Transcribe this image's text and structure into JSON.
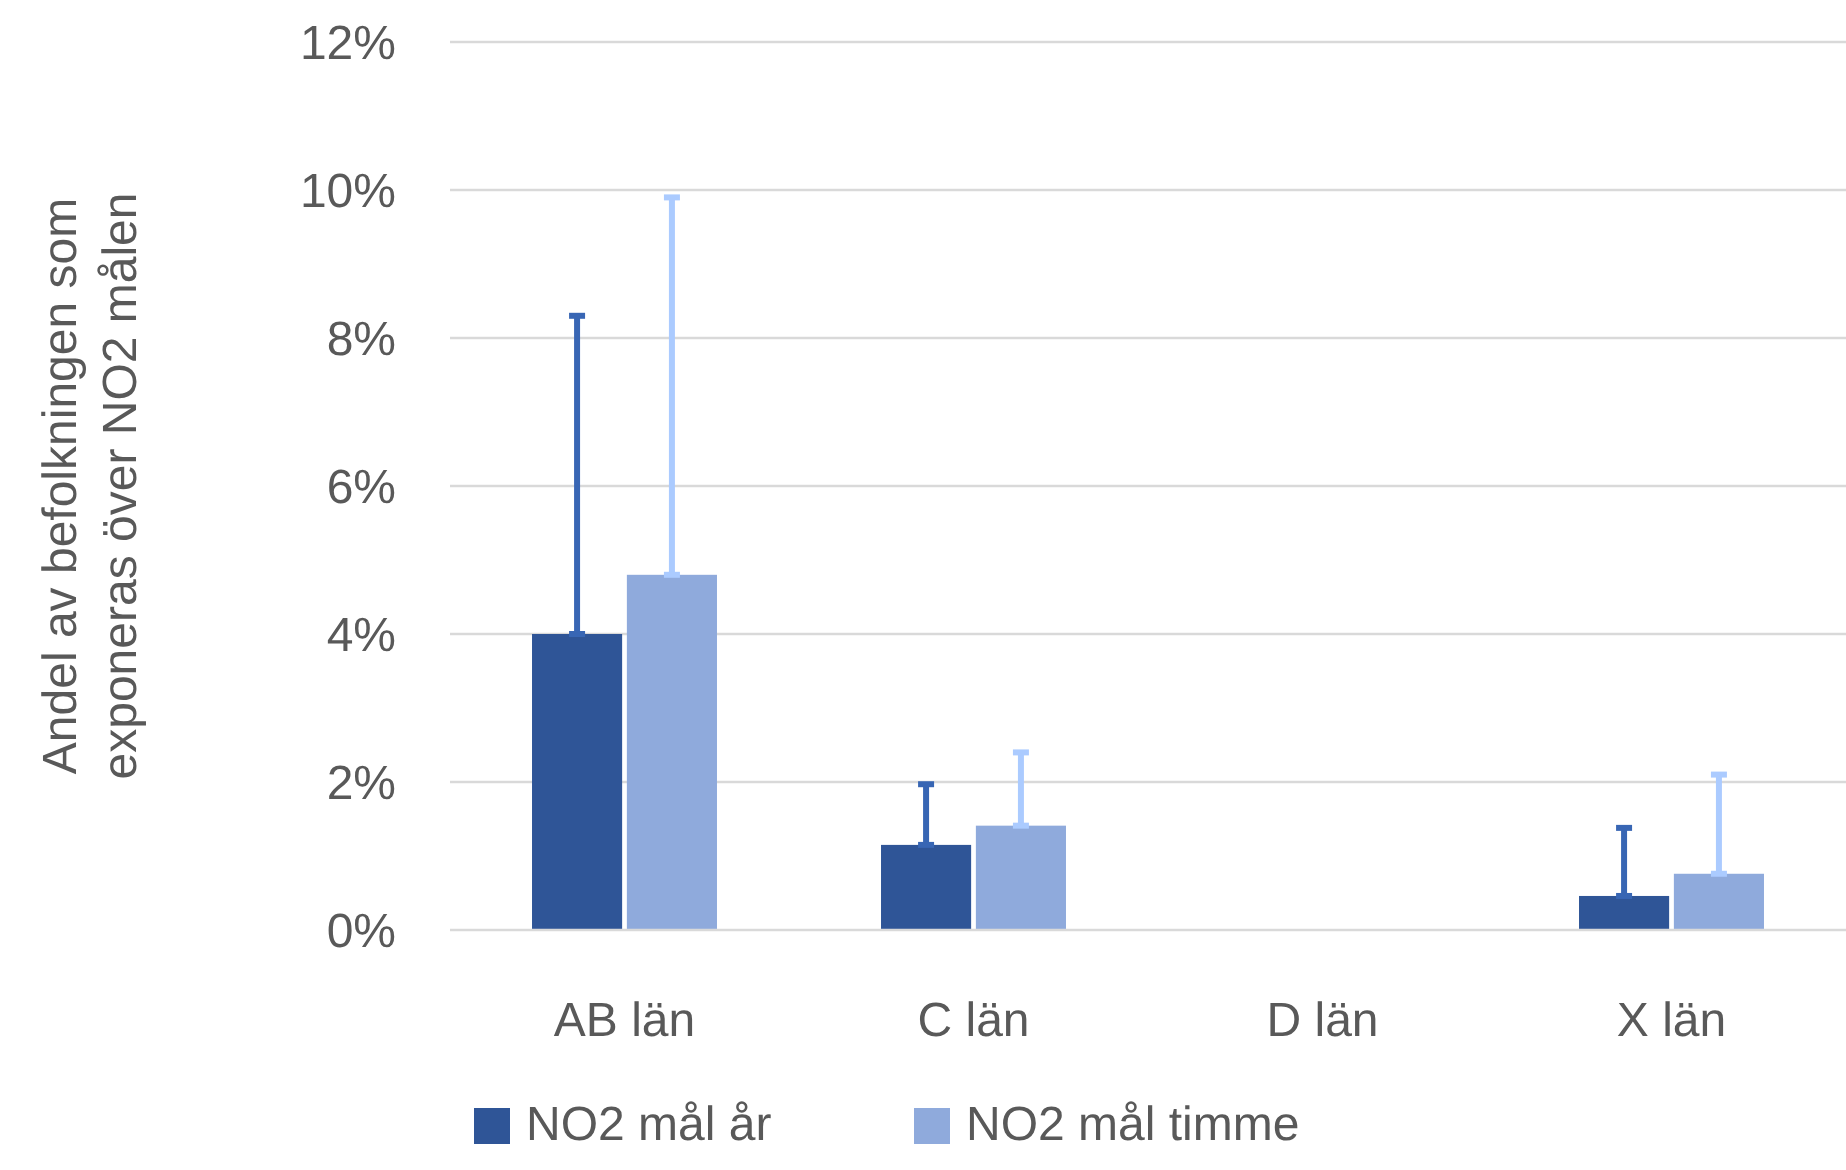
{
  "chart_data": {
    "type": "bar",
    "ylabel": "Andel av befolkningen som\nexponeras över NO2 målen",
    "categories": [
      "AB län",
      "C län",
      "D län",
      "X län"
    ],
    "series": [
      {
        "name": "NO2 mål år",
        "color": "#2f5597",
        "values": [
          4.0,
          1.15,
          0,
          0.46
        ],
        "errors": [
          [
            4.0,
            8.3
          ],
          [
            1.15,
            1.97
          ],
          null,
          [
            0.46,
            1.38
          ]
        ]
      },
      {
        "name": "NO2 mål timme",
        "color": "#8faadc",
        "values": [
          4.8,
          1.41,
          0,
          0.76
        ],
        "errors": [
          [
            4.8,
            9.9
          ],
          [
            1.41,
            2.4
          ],
          null,
          [
            0.76,
            2.1
          ]
        ]
      }
    ],
    "ylim": [
      0,
      12
    ],
    "yticks": [
      {
        "value": 0,
        "label": "0%"
      },
      {
        "value": 2,
        "label": "2%"
      },
      {
        "value": 4,
        "label": "4%"
      },
      {
        "value": 6,
        "label": "6%"
      },
      {
        "value": 8,
        "label": "8%"
      },
      {
        "value": 10,
        "label": "10%"
      },
      {
        "value": 12,
        "label": "12%"
      }
    ],
    "grid": "y",
    "legend": "bottom"
  }
}
